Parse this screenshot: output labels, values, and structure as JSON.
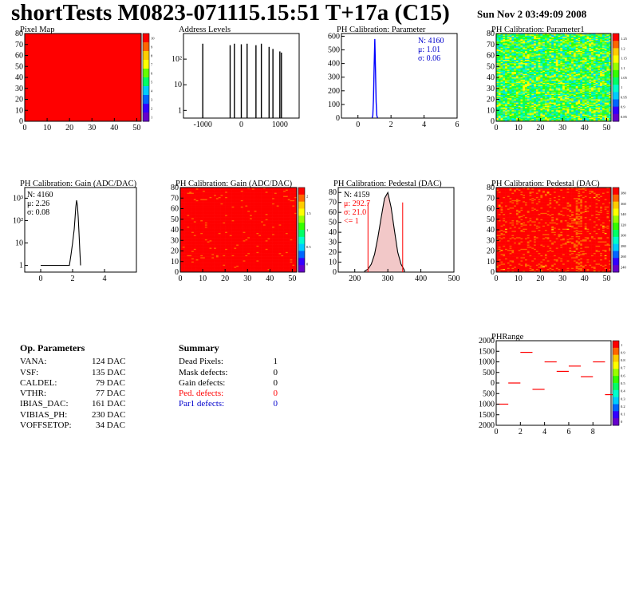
{
  "header": {
    "title": "shortTests M0823-071115.15:51 T+17a (C15)",
    "date": "Sun Nov  2 03:49:09 2008"
  },
  "chart_data": [
    {
      "id": "pixel_map",
      "type": "heatmap",
      "title": "Pixel Map",
      "xlim": [
        0,
        52
      ],
      "ylim": [
        0,
        80
      ],
      "xticks": [
        0,
        10,
        20,
        30,
        40,
        50
      ],
      "yticks": [
        0,
        10,
        20,
        30,
        40,
        50,
        60,
        70,
        80
      ],
      "uniform_value": 10,
      "zlim": [
        0,
        10
      ],
      "zticks": [
        "10",
        "9",
        "8",
        "7",
        "6",
        "5",
        "4",
        "3",
        "2",
        "1"
      ]
    },
    {
      "id": "address_levels",
      "type": "line",
      "title": "Address Levels",
      "log_y": true,
      "xlim": [
        -1500,
        1500
      ],
      "ylim": [
        0.5,
        1000
      ],
      "xticks": [
        -1000,
        0,
        1000
      ],
      "xtick_labels": [
        "-1000",
        "0",
        "1000"
      ],
      "ytick_labels": [
        "1",
        "10",
        "10²"
      ],
      "yticks": [
        1,
        10,
        100
      ],
      "peak_x": [
        -1000,
        -290,
        -180,
        0,
        150,
        380,
        520,
        720,
        820,
        1000,
        1040
      ],
      "peak_y": [
        400,
        350,
        400,
        380,
        400,
        350,
        400,
        300,
        250,
        200,
        180
      ]
    },
    {
      "id": "ph_param",
      "type": "bar",
      "title": "PH Calibration: Parameter",
      "xlim": [
        -1,
        6
      ],
      "ylim": [
        0,
        620
      ],
      "xticks": [
        0,
        2,
        4,
        6
      ],
      "yticks": [
        0,
        100,
        200,
        300,
        400,
        500,
        600
      ],
      "stats": [
        "N: 4160",
        "μ: 1.01",
        "σ: 0.06"
      ],
      "x": [
        0.86,
        0.9,
        0.94,
        0.98,
        1.02,
        1.06,
        1.1,
        1.14,
        1.18
      ],
      "y": [
        2,
        20,
        140,
        380,
        580,
        360,
        120,
        20,
        2
      ]
    },
    {
      "id": "ph_param1",
      "type": "heatmap",
      "title": "PH Calibration: Parameter1",
      "xlim": [
        0,
        52
      ],
      "ylim": [
        0,
        80
      ],
      "xticks": [
        0,
        10,
        20,
        30,
        40,
        50
      ],
      "yticks": [
        0,
        10,
        20,
        30,
        40,
        50,
        60,
        70,
        80
      ],
      "zticks": [
        "1.25",
        "1.2",
        "1.15",
        "1.1",
        "1.05",
        "1",
        "0.95",
        "0.9",
        "0.85"
      ]
    },
    {
      "id": "gain_hist",
      "type": "bar",
      "title": "PH Calibration: Gain (ADC/DAC)",
      "log_y": true,
      "xlim": [
        -1,
        6
      ],
      "ylim": [
        0.5,
        3000
      ],
      "xticks": [
        0,
        2,
        4
      ],
      "yticks": [
        1,
        10,
        100,
        1000
      ],
      "ytick_labels": [
        "1",
        "10",
        "10²",
        "10³"
      ],
      "stats": [
        "N: 4160",
        "μ: 2.26",
        "σ: 0.08"
      ],
      "x": [
        0,
        1.8,
        1.9,
        2.0,
        2.1,
        2.15,
        2.2,
        2.25,
        2.3,
        2.35,
        2.4,
        2.45,
        2.5
      ],
      "y": [
        1,
        1,
        3,
        10,
        40,
        120,
        400,
        800,
        500,
        150,
        30,
        5,
        1
      ]
    },
    {
      "id": "gain_map",
      "type": "heatmap",
      "title": "PH Calibration: Gain (ADC/DAC)",
      "xlim": [
        0,
        52
      ],
      "ylim": [
        0,
        80
      ],
      "xticks": [
        0,
        10,
        20,
        30,
        40,
        50
      ],
      "yticks": [
        0,
        10,
        20,
        30,
        40,
        50,
        60,
        70,
        80
      ],
      "zticks": [
        "2",
        "1.5",
        "1",
        "0.5",
        "0"
      ]
    },
    {
      "id": "pedestal_hist",
      "type": "bar",
      "title": "PH Calibration: Pedestal (DAC)",
      "xlim": [
        150,
        500
      ],
      "ylim": [
        0,
        85
      ],
      "xticks": [
        200,
        300,
        400,
        500
      ],
      "yticks": [
        0,
        10,
        20,
        30,
        40,
        50,
        60,
        70,
        80
      ],
      "stats": [
        "N: 4159",
        "μ: 292.7",
        "σ: 21.0",
        "<= 1"
      ],
      "cut_lines": [
        240,
        345
      ],
      "x": [
        230,
        240,
        250,
        260,
        270,
        280,
        290,
        300,
        310,
        320,
        330,
        340,
        350
      ],
      "y": [
        1,
        3,
        8,
        18,
        35,
        55,
        74,
        80,
        65,
        42,
        20,
        8,
        2
      ]
    },
    {
      "id": "pedestal_map",
      "type": "heatmap",
      "title": "PH Calibration: Pedestal (DAC)",
      "xlim": [
        0,
        52
      ],
      "ylim": [
        0,
        80
      ],
      "xticks": [
        0,
        10,
        20,
        30,
        40,
        50
      ],
      "yticks": [
        0,
        10,
        20,
        30,
        40,
        50,
        60,
        70,
        80
      ],
      "zticks": [
        "380",
        "360",
        "340",
        "320",
        "300",
        "280",
        "260",
        "240"
      ]
    },
    {
      "id": "ph_range",
      "type": "line",
      "title": "PHRange",
      "xlim": [
        0,
        9.5
      ],
      "ylim": [
        -2000,
        2000
      ],
      "xticks": [
        0,
        2,
        4,
        6,
        8
      ],
      "yticks": [
        2000,
        1500,
        1000,
        500,
        0,
        -500,
        -1000,
        -1500,
        -2000
      ],
      "ytick_labels": [
        "2000",
        "1500",
        "1000",
        "500",
        "0",
        "500",
        "1000",
        "1500",
        "2000"
      ],
      "x": [
        0,
        1,
        2,
        3,
        4,
        5,
        6,
        7,
        8,
        9
      ],
      "y": [
        -1000,
        0,
        1450,
        -300,
        1000,
        550,
        800,
        300,
        1000,
        -550
      ],
      "zticks": [
        "1",
        "0.9",
        "0.8",
        "0.7",
        "0.6",
        "0.5",
        "0.4",
        "0.3",
        "0.2",
        "0.1",
        "0"
      ]
    }
  ],
  "op_params": {
    "heading": "Op. Parameters",
    "rows": [
      {
        "name": "VANA:",
        "value": "124 DAC"
      },
      {
        "name": "VSF:",
        "value": "135 DAC"
      },
      {
        "name": "CALDEL:",
        "value": "79 DAC"
      },
      {
        "name": "VTHR:",
        "value": "77 DAC"
      },
      {
        "name": "IBIAS_DAC:",
        "value": "161 DAC"
      },
      {
        "name": "VIBIAS_PH:",
        "value": "230 DAC"
      },
      {
        "name": "VOFFSETOP:",
        "value": "34 DAC"
      }
    ]
  },
  "summary": {
    "heading": "Summary",
    "rows": [
      {
        "name": "Dead Pixels:",
        "value": "1",
        "color": "#000000"
      },
      {
        "name": "Mask defects:",
        "value": "0",
        "color": "#000000"
      },
      {
        "name": "Gain defects:",
        "value": "0",
        "color": "#000000"
      },
      {
        "name": "Ped. defects:",
        "value": "0",
        "color": "#ff0000"
      },
      {
        "name": "Par1 defects:",
        "value": "0",
        "color": "#0000cc"
      }
    ]
  }
}
